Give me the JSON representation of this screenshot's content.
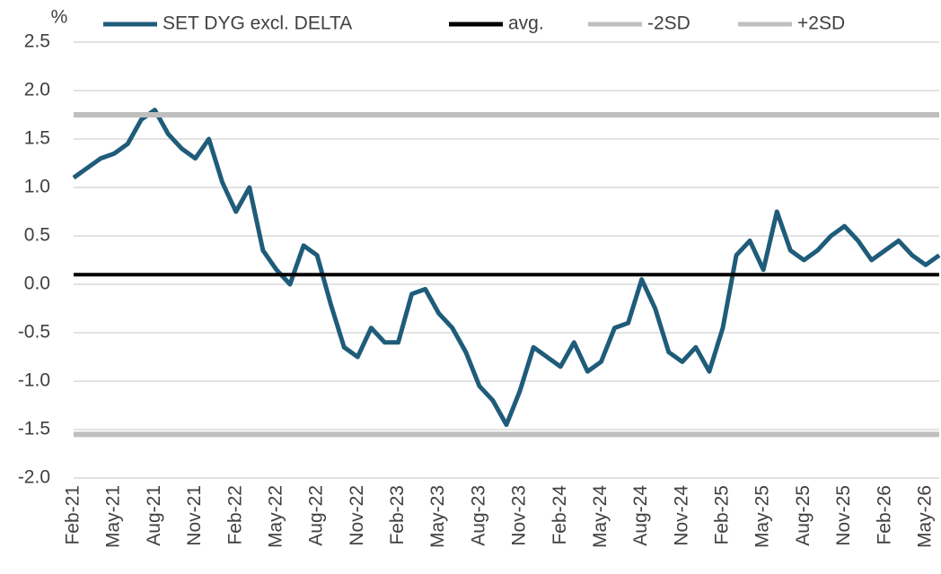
{
  "chart_data": {
    "type": "line",
    "y_label": "%",
    "categories": [
      "Feb-21",
      null,
      null,
      "May-21",
      null,
      null,
      "Aug-21",
      null,
      null,
      "Nov-21",
      null,
      null,
      "Feb-22",
      null,
      null,
      "May-22",
      null,
      null,
      "Aug-22",
      null,
      null,
      "Nov-22",
      null,
      null,
      "Feb-23",
      null,
      null,
      "May-23",
      null,
      null,
      "Aug-23",
      null,
      null,
      "Nov-23",
      null,
      null,
      "Feb-24",
      null,
      null,
      "May-24",
      null,
      null,
      "Aug-24",
      null,
      null,
      "Nov-24",
      null,
      null,
      "Feb-25",
      null,
      null,
      "May-25",
      null,
      null,
      "Aug-25",
      null,
      null,
      "Nov-25",
      null,
      null,
      "Feb-26",
      null,
      null,
      "May-26",
      null
    ],
    "series": [
      {
        "name": "SET DYG excl. DELTA",
        "color": "#1f5c7a",
        "values": [
          1.1,
          1.2,
          1.3,
          1.35,
          1.45,
          1.7,
          1.8,
          1.55,
          1.4,
          1.3,
          1.5,
          1.05,
          0.75,
          1.0,
          0.35,
          0.15,
          0.0,
          0.4,
          0.3,
          -0.2,
          -0.65,
          -0.75,
          -0.45,
          -0.6,
          -0.6,
          -0.1,
          -0.05,
          -0.3,
          -0.45,
          -0.7,
          -1.05,
          -1.2,
          -1.45,
          -1.1,
          -0.65,
          -0.75,
          -0.85,
          -0.6,
          -0.9,
          -0.8,
          -0.45,
          -0.4,
          0.05,
          -0.25,
          -0.7,
          -0.8,
          -0.65,
          -0.9,
          -0.45,
          0.3,
          0.45,
          0.15,
          0.75,
          0.35,
          0.25,
          0.35,
          0.5,
          0.6,
          0.45,
          0.25,
          0.35,
          0.45,
          0.3,
          0.2,
          0.3
        ]
      },
      {
        "name": "avg.",
        "color": "#000000",
        "value": 0.1
      },
      {
        "name": "-2SD",
        "color": "#bfbfbf",
        "value": -1.55
      },
      {
        "name": "+2SD",
        "color": "#bfbfbf",
        "value": 1.75
      }
    ],
    "ylim": [
      -2,
      2.5
    ],
    "yticks": [
      {
        "value": 2.5,
        "label": "2.5"
      },
      {
        "value": 2,
        "label": "2.0"
      },
      {
        "value": 1.5,
        "label": "1.5"
      },
      {
        "value": 1,
        "label": "1.0"
      },
      {
        "value": 0.5,
        "label": "0.5"
      },
      {
        "value": 0,
        "label": "0.0"
      },
      {
        "value": -0.5,
        "label": "-0.5"
      },
      {
        "value": -1,
        "label": "-1.0"
      },
      {
        "value": -1.5,
        "label": "-1.5"
      },
      {
        "value": -2,
        "label": "-2.0"
      }
    ],
    "grid": true
  }
}
